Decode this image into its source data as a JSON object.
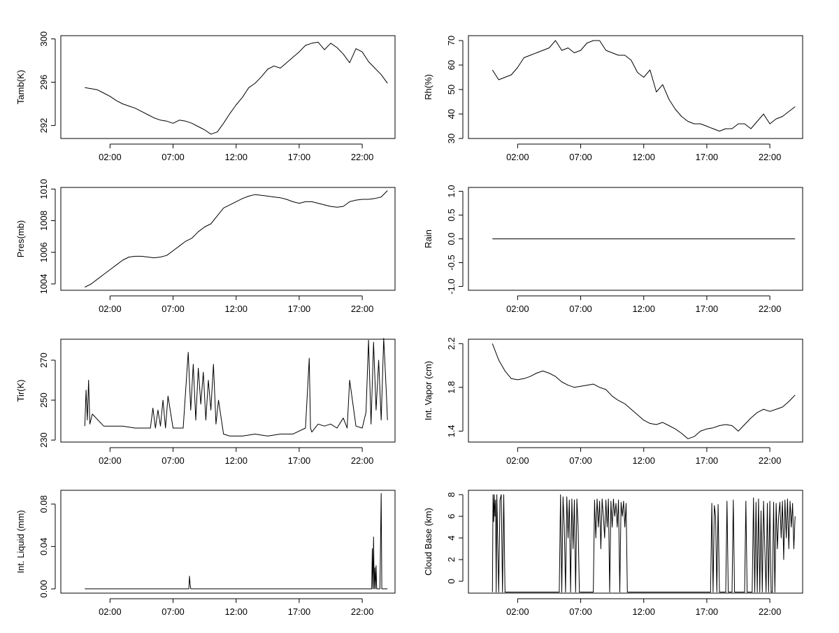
{
  "chart_data": [
    {
      "type": "line",
      "ylabel": "Tamb(K)",
      "xticks": [
        "02:00",
        "07:00",
        "12:00",
        "17:00",
        "22:00"
      ],
      "yticks": [
        292,
        296,
        300
      ],
      "ylim": [
        290.8,
        300.3
      ],
      "x_hours": [
        0,
        0.5,
        1,
        1.5,
        2,
        2.5,
        3,
        3.5,
        4,
        4.5,
        5,
        5.5,
        6,
        6.5,
        7,
        7.5,
        8,
        8.5,
        9,
        9.5,
        10,
        10.5,
        11,
        11.5,
        12,
        12.5,
        13,
        13.5,
        14,
        14.5,
        15,
        15.5,
        16,
        16.5,
        17,
        17.5,
        18,
        18.5,
        19,
        19.5,
        20,
        20.5,
        21,
        21.5,
        22,
        22.5,
        23,
        23.5,
        24
      ],
      "values": [
        295.5,
        295.4,
        295.3,
        295.0,
        294.7,
        294.3,
        294.0,
        293.8,
        293.6,
        293.3,
        293.0,
        292.7,
        292.5,
        292.4,
        292.2,
        292.5,
        292.4,
        292.2,
        291.9,
        291.6,
        291.2,
        291.4,
        292.2,
        293.1,
        293.9,
        294.6,
        295.5,
        295.9,
        296.5,
        297.2,
        297.5,
        297.3,
        297.8,
        298.3,
        298.8,
        299.4,
        299.6,
        299.7,
        299.0,
        299.6,
        299.2,
        298.6,
        297.8,
        299.1,
        298.8,
        297.9,
        297.3,
        296.7,
        295.9
      ],
      "xlim": [
        -1.9,
        24.6
      ]
    },
    {
      "type": "line",
      "ylabel": "Rh(%)",
      "xticks": [
        "02:00",
        "07:00",
        "12:00",
        "17:00",
        "22:00"
      ],
      "yticks": [
        30,
        40,
        50,
        60,
        70
      ],
      "ylim": [
        30,
        72
      ],
      "x_hours": [
        0,
        0.5,
        1,
        1.5,
        2,
        2.5,
        3,
        3.5,
        4,
        4.5,
        5,
        5.5,
        6,
        6.5,
        7,
        7.5,
        8,
        8.5,
        9,
        9.5,
        10,
        10.5,
        11,
        11.5,
        12,
        12.5,
        13,
        13.5,
        14,
        14.5,
        15,
        15.5,
        16,
        16.5,
        17,
        17.5,
        18,
        18.5,
        19,
        19.5,
        20,
        20.5,
        21,
        21.5,
        22,
        22.5,
        23,
        23.5,
        24
      ],
      "values": [
        58,
        54,
        55,
        56,
        59,
        63,
        64,
        65,
        66,
        67,
        70,
        66,
        67,
        65,
        66,
        69,
        70,
        70,
        66,
        65,
        64,
        64,
        62,
        57,
        55,
        58,
        49,
        52,
        46,
        42,
        39,
        37,
        36,
        36,
        35,
        34,
        33,
        34,
        34,
        36,
        36,
        34,
        37,
        40,
        36,
        38,
        39,
        41,
        43
      ],
      "xlim": [
        -1.9,
        24.6
      ]
    },
    {
      "type": "line",
      "ylabel": "Pres(mb)",
      "xticks": [
        "02:00",
        "07:00",
        "12:00",
        "17:00",
        "22:00"
      ],
      "yticks": [
        1004,
        1006,
        1008,
        1010
      ],
      "ylim": [
        1003.6,
        1010.1
      ],
      "x_hours": [
        0,
        0.5,
        1,
        1.5,
        2,
        2.5,
        3,
        3.5,
        4,
        4.5,
        5,
        5.5,
        6,
        6.5,
        7,
        7.5,
        8,
        8.5,
        9,
        9.5,
        10,
        10.5,
        11,
        11.5,
        12,
        12.5,
        13,
        13.5,
        14,
        14.5,
        15,
        15.5,
        16,
        16.5,
        17,
        17.5,
        18,
        18.5,
        19,
        19.5,
        20,
        20.5,
        21,
        21.5,
        22,
        22.5,
        23,
        23.5,
        24
      ],
      "values": [
        1003.8,
        1004.0,
        1004.3,
        1004.6,
        1004.9,
        1005.2,
        1005.5,
        1005.7,
        1005.75,
        1005.75,
        1005.7,
        1005.65,
        1005.7,
        1005.8,
        1006.1,
        1006.4,
        1006.7,
        1006.9,
        1007.3,
        1007.6,
        1007.8,
        1008.3,
        1008.8,
        1009.0,
        1009.2,
        1009.4,
        1009.55,
        1009.65,
        1009.6,
        1009.55,
        1009.5,
        1009.45,
        1009.35,
        1009.2,
        1009.1,
        1009.2,
        1009.2,
        1009.1,
        1009.0,
        1008.9,
        1008.85,
        1008.9,
        1009.2,
        1009.3,
        1009.35,
        1009.35,
        1009.4,
        1009.5,
        1009.9
      ],
      "xlim": [
        -1.9,
        24.6
      ]
    },
    {
      "type": "line",
      "ylabel": "Rain",
      "xticks": [
        "02:00",
        "07:00",
        "12:00",
        "17:00",
        "22:00"
      ],
      "yticks": [
        -1.0,
        -0.5,
        0.0,
        0.5,
        1.0
      ],
      "ytick_labels": [
        "-1.0",
        "-0.5",
        "0.0",
        "0.5",
        "1.0"
      ],
      "ylim": [
        -1.08,
        1.08
      ],
      "x_hours": [
        0,
        24
      ],
      "values": [
        0,
        0
      ],
      "xlim": [
        -1.9,
        24.6
      ]
    },
    {
      "type": "line",
      "ylabel": "Tir(K)",
      "xticks": [
        "02:00",
        "07:00",
        "12:00",
        "17:00",
        "22:00"
      ],
      "yticks": [
        230,
        250,
        270
      ],
      "ylim": [
        229,
        280.5
      ],
      "x_hours": [
        0,
        0.1,
        0.2,
        0.3,
        0.4,
        0.6,
        1.5,
        3,
        4,
        5.2,
        5.4,
        5.6,
        5.8,
        6.0,
        6.2,
        6.4,
        6.6,
        7.0,
        7.8,
        8.0,
        8.2,
        8.4,
        8.6,
        8.8,
        9.0,
        9.2,
        9.4,
        9.6,
        9.8,
        10.0,
        10.2,
        10.4,
        10.6,
        11.0,
        11.5,
        12.5,
        13.5,
        14.5,
        15.5,
        16.5,
        17.5,
        17.8,
        17.9,
        18.0,
        18.5,
        19.0,
        19.5,
        20.0,
        20.5,
        20.8,
        21.0,
        21.5,
        22.0,
        22.3,
        22.5,
        22.7,
        22.9,
        23.1,
        23.3,
        23.5,
        23.7,
        23.9,
        24.0
      ],
      "values": [
        237,
        255,
        240,
        260,
        238,
        243,
        237,
        237,
        236,
        236,
        246,
        236,
        245,
        237,
        250,
        236,
        252,
        236,
        236,
        255,
        274,
        245,
        268,
        240,
        266,
        248,
        264,
        240,
        260,
        245,
        268,
        238,
        250,
        233,
        232,
        232,
        233,
        232,
        233,
        233,
        236,
        271,
        236,
        234,
        238,
        237,
        238,
        236,
        241,
        236,
        260,
        237,
        236,
        244,
        280,
        238,
        279,
        245,
        270,
        240,
        281,
        255,
        240
      ],
      "xlim": [
        -1.9,
        24.6
      ]
    },
    {
      "type": "line",
      "ylabel": "Int. Vapor (cm)",
      "xticks": [
        "02:00",
        "07:00",
        "12:00",
        "17:00",
        "22:00"
      ],
      "yticks": [
        1.4,
        1.8,
        2.2
      ],
      "ylim": [
        1.3,
        2.24
      ],
      "x_hours": [
        0,
        0.5,
        1,
        1.5,
        2,
        2.5,
        3,
        3.5,
        4,
        4.5,
        5,
        5.5,
        6,
        6.5,
        7,
        7.5,
        8,
        8.5,
        9,
        9.5,
        10,
        10.5,
        11,
        11.5,
        12,
        12.5,
        13,
        13.5,
        14,
        14.5,
        15,
        15.5,
        16,
        16.5,
        17,
        17.5,
        18,
        18.5,
        19,
        19.5,
        20,
        20.5,
        21,
        21.5,
        22,
        22.5,
        23,
        23.5,
        24
      ],
      "values": [
        2.2,
        2.05,
        1.95,
        1.88,
        1.87,
        1.88,
        1.9,
        1.93,
        1.95,
        1.93,
        1.9,
        1.85,
        1.82,
        1.8,
        1.81,
        1.82,
        1.83,
        1.8,
        1.78,
        1.72,
        1.68,
        1.65,
        1.6,
        1.55,
        1.5,
        1.47,
        1.46,
        1.48,
        1.45,
        1.42,
        1.38,
        1.33,
        1.35,
        1.4,
        1.42,
        1.43,
        1.45,
        1.46,
        1.45,
        1.4,
        1.46,
        1.52,
        1.57,
        1.6,
        1.58,
        1.6,
        1.62,
        1.67,
        1.73
      ],
      "xlim": [
        -1.9,
        24.6
      ]
    },
    {
      "type": "line",
      "ylabel": "Int. Liquid (mm)",
      "xticks": [
        "02:00",
        "07:00",
        "12:00",
        "17:00",
        "22:00"
      ],
      "yticks": [
        0.0,
        0.04,
        0.08
      ],
      "ytick_labels": [
        "0.00",
        "0.04",
        "0.08"
      ],
      "ylim": [
        -0.004,
        0.093
      ],
      "x_hours": [
        0,
        8.25,
        8.3,
        8.35,
        8.4,
        22.75,
        22.8,
        22.85,
        22.9,
        22.95,
        23.0,
        23.05,
        23.1,
        23.15,
        23.2,
        23.4,
        23.5,
        23.55,
        23.6,
        24
      ],
      "values": [
        0,
        0,
        0.012,
        0.005,
        0,
        0,
        0.038,
        0,
        0.049,
        0,
        0.02,
        0,
        0.022,
        0,
        0,
        0,
        0.09,
        0,
        0,
        0
      ],
      "xlim": [
        -1.9,
        24.6
      ]
    },
    {
      "type": "line",
      "ylabel": "Cloud Base (km)",
      "xticks": [
        "02:00",
        "07:00",
        "12:00",
        "17:00",
        "22:00"
      ],
      "yticks": [
        0,
        2,
        4,
        6,
        8
      ],
      "ylim": [
        -1.1,
        8.4
      ],
      "x_hours": [
        0,
        0.05,
        0.1,
        0.15,
        0.2,
        0.25,
        0.3,
        0.35,
        0.5,
        0.6,
        0.7,
        0.8,
        0.9,
        1.0,
        1.1,
        1.2,
        5.3,
        5.4,
        5.5,
        5.6,
        5.7,
        5.8,
        5.9,
        6.0,
        6.1,
        6.2,
        6.3,
        6.4,
        6.5,
        6.6,
        6.7,
        6.8,
        6.9,
        7.0,
        8.0,
        8.1,
        8.2,
        8.3,
        8.4,
        8.5,
        8.6,
        8.7,
        8.8,
        8.9,
        9.0,
        9.1,
        9.2,
        9.3,
        9.4,
        9.5,
        9.6,
        9.7,
        9.8,
        9.9,
        10.0,
        10.1,
        10.2,
        10.3,
        10.4,
        10.5,
        10.6,
        10.7,
        10.8,
        11.0,
        17.3,
        17.4,
        17.5,
        17.6,
        17.7,
        17.8,
        17.9,
        18.0,
        18.1,
        18.5,
        18.6,
        18.7,
        19.0,
        19.1,
        19.2,
        20.0,
        20.1,
        20.2,
        20.6,
        20.7,
        20.8,
        20.9,
        21.0,
        21.1,
        21.2,
        21.3,
        21.4,
        21.5,
        21.6,
        21.7,
        21.8,
        21.9,
        22.0,
        22.1,
        22.2,
        22.3,
        22.4,
        22.5,
        22.6,
        22.7,
        22.8,
        22.9,
        23.0,
        23.1,
        23.2,
        23.3,
        23.4,
        23.5,
        23.6,
        23.7,
        23.8,
        23.9,
        24.0
      ],
      "values": [
        -1,
        8,
        5.5,
        8,
        6,
        7.5,
        -1,
        8,
        -1,
        7.5,
        8,
        -1,
        8,
        -1,
        -1,
        -1,
        -1,
        8,
        -1,
        7.8,
        5,
        -1,
        7.8,
        4,
        7.5,
        -1,
        7.6,
        3,
        7.5,
        -1,
        7.6,
        5,
        -1,
        -1,
        -1,
        7.5,
        4,
        7.6,
        5,
        7.4,
        3,
        7.6,
        6,
        4,
        7.5,
        5,
        7.6,
        -1,
        7.4,
        5,
        7.6,
        6,
        7.2,
        5,
        7.5,
        -1,
        7.3,
        6,
        7.4,
        5,
        7.2,
        -1,
        -1,
        -1,
        -1,
        7.2,
        -1,
        7.0,
        6,
        -1,
        7.1,
        -1,
        -1,
        -1,
        7.4,
        -1,
        -1,
        7.5,
        -1,
        -1,
        7.4,
        -1,
        -1,
        7.7,
        -1,
        7.3,
        -1,
        7.6,
        -1,
        6.5,
        -1,
        7.4,
        3,
        -1,
        7.2,
        -1,
        7.4,
        -1,
        -1,
        7.3,
        -1,
        7.2,
        3,
        6,
        7.3,
        4,
        7.4,
        2,
        7.5,
        4,
        7.6,
        3,
        7.4,
        5,
        7.2,
        3,
        6
      ],
      "xlim": [
        -1.9,
        24.6
      ]
    }
  ]
}
